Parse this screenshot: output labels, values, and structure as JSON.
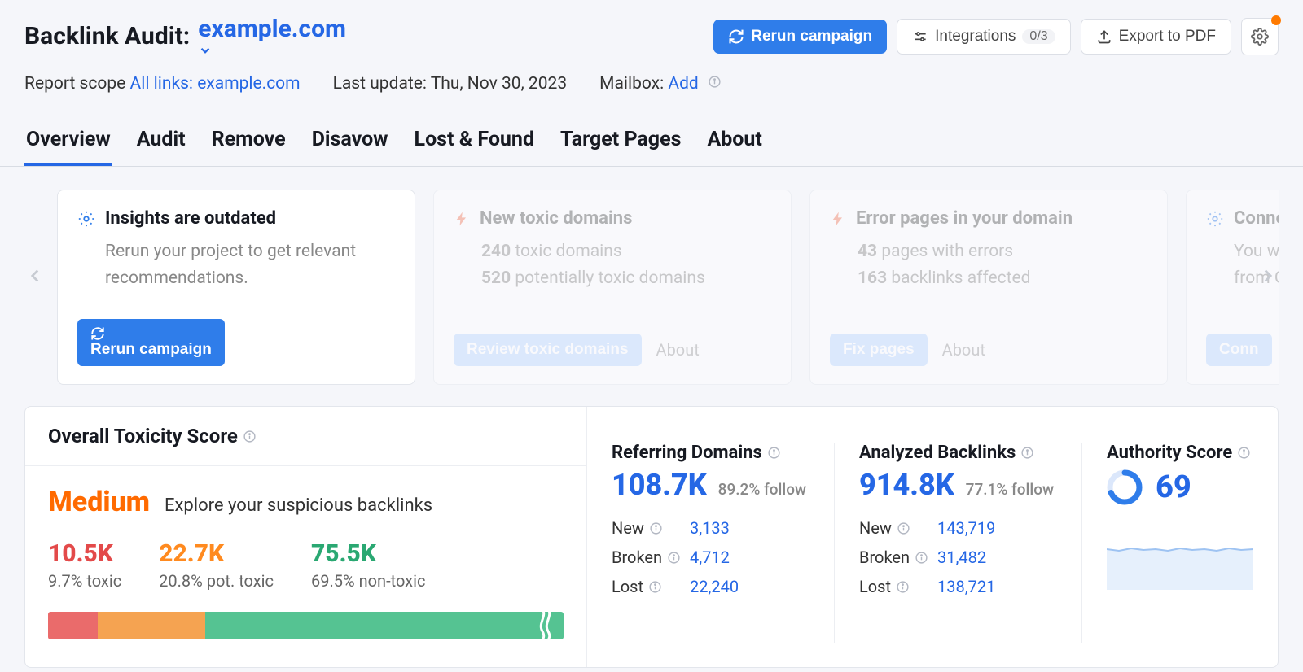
{
  "header": {
    "title_prefix": "Backlink Audit:",
    "domain": "example.com",
    "rerun_label": "Rerun campaign",
    "integrations_label": "Integrations",
    "integrations_count": "0/3",
    "export_label": "Export to PDF"
  },
  "meta": {
    "scope_label": "Report scope",
    "scope_link": "All links: example.com",
    "last_update_label": "Last update:",
    "last_update_value": "Thu, Nov 30, 2023",
    "mailbox_label": "Mailbox:",
    "mailbox_link": "Add"
  },
  "tabs": [
    "Overview",
    "Audit",
    "Remove",
    "Disavow",
    "Lost & Found",
    "Target Pages",
    "About"
  ],
  "active_tab": 0,
  "insight_cards": [
    {
      "icon": "gear",
      "faded": false,
      "title": "Insights are outdated",
      "lines": [
        "Rerun your project to get relevant recommendations."
      ],
      "primary_action": "Rerun campaign",
      "secondary_action": null
    },
    {
      "icon": "bolt",
      "faded": true,
      "title": "New toxic domains",
      "lines": [
        "240 toxic domains",
        "520 potentially toxic domains"
      ],
      "primary_action": "Review toxic domains",
      "secondary_action": "About"
    },
    {
      "icon": "bolt",
      "faded": true,
      "title": "Error pages in your domain",
      "lines": [
        "43 pages with errors",
        "163 backlinks affected"
      ],
      "primary_action": "Fix pages",
      "secondary_action": "About"
    },
    {
      "icon": "gear",
      "faded": true,
      "title": "Connect",
      "lines": [
        "You will",
        "from G"
      ],
      "primary_action": "Conn",
      "secondary_action": null
    }
  ],
  "ots": {
    "title": "Overall Toxicity Score",
    "level": "Medium",
    "level_color": "#ff6a00",
    "subtitle": "Explore your suspicious backlinks",
    "counts": [
      {
        "value": "10.5K",
        "label": "9.7% toxic",
        "class": "toxic"
      },
      {
        "value": "22.7K",
        "label": "20.8% pot. toxic",
        "class": "pot"
      },
      {
        "value": "75.5K",
        "label": "69.5% non-toxic",
        "class": "non"
      }
    ],
    "bar": {
      "segments": [
        {
          "width_pct": 9.7,
          "color": "#ea6b6b"
        },
        {
          "width_pct": 20.8,
          "color": "#f5a351"
        },
        {
          "width_pct": 69.5,
          "color": "#55c392"
        }
      ]
    }
  },
  "referring": {
    "title": "Referring Domains",
    "value": "108.7K",
    "follow": "89.2% follow",
    "rows": [
      {
        "label": "New",
        "value": "3,133"
      },
      {
        "label": "Broken",
        "value": "4,712"
      },
      {
        "label": "Lost",
        "value": "22,240"
      }
    ]
  },
  "analyzed": {
    "title": "Analyzed Backlinks",
    "value": "914.8K",
    "follow": "77.1% follow",
    "rows": [
      {
        "label": "New",
        "value": "143,719"
      },
      {
        "label": "Broken",
        "value": "31,482"
      },
      {
        "label": "Lost",
        "value": "138,721"
      }
    ]
  },
  "authority": {
    "title": "Authority Score",
    "value": "69",
    "donut_pct": 69,
    "donut_fg": "#2f7dea",
    "donut_bg": "#dbe7fb",
    "spark_color": "#9ec3f2",
    "spark_fill": "#e6f0fc"
  },
  "colors": {
    "primary": "#2f7dea",
    "link": "#2567e5",
    "bg": "#f5f6fa",
    "border": "#e3e6ec"
  }
}
